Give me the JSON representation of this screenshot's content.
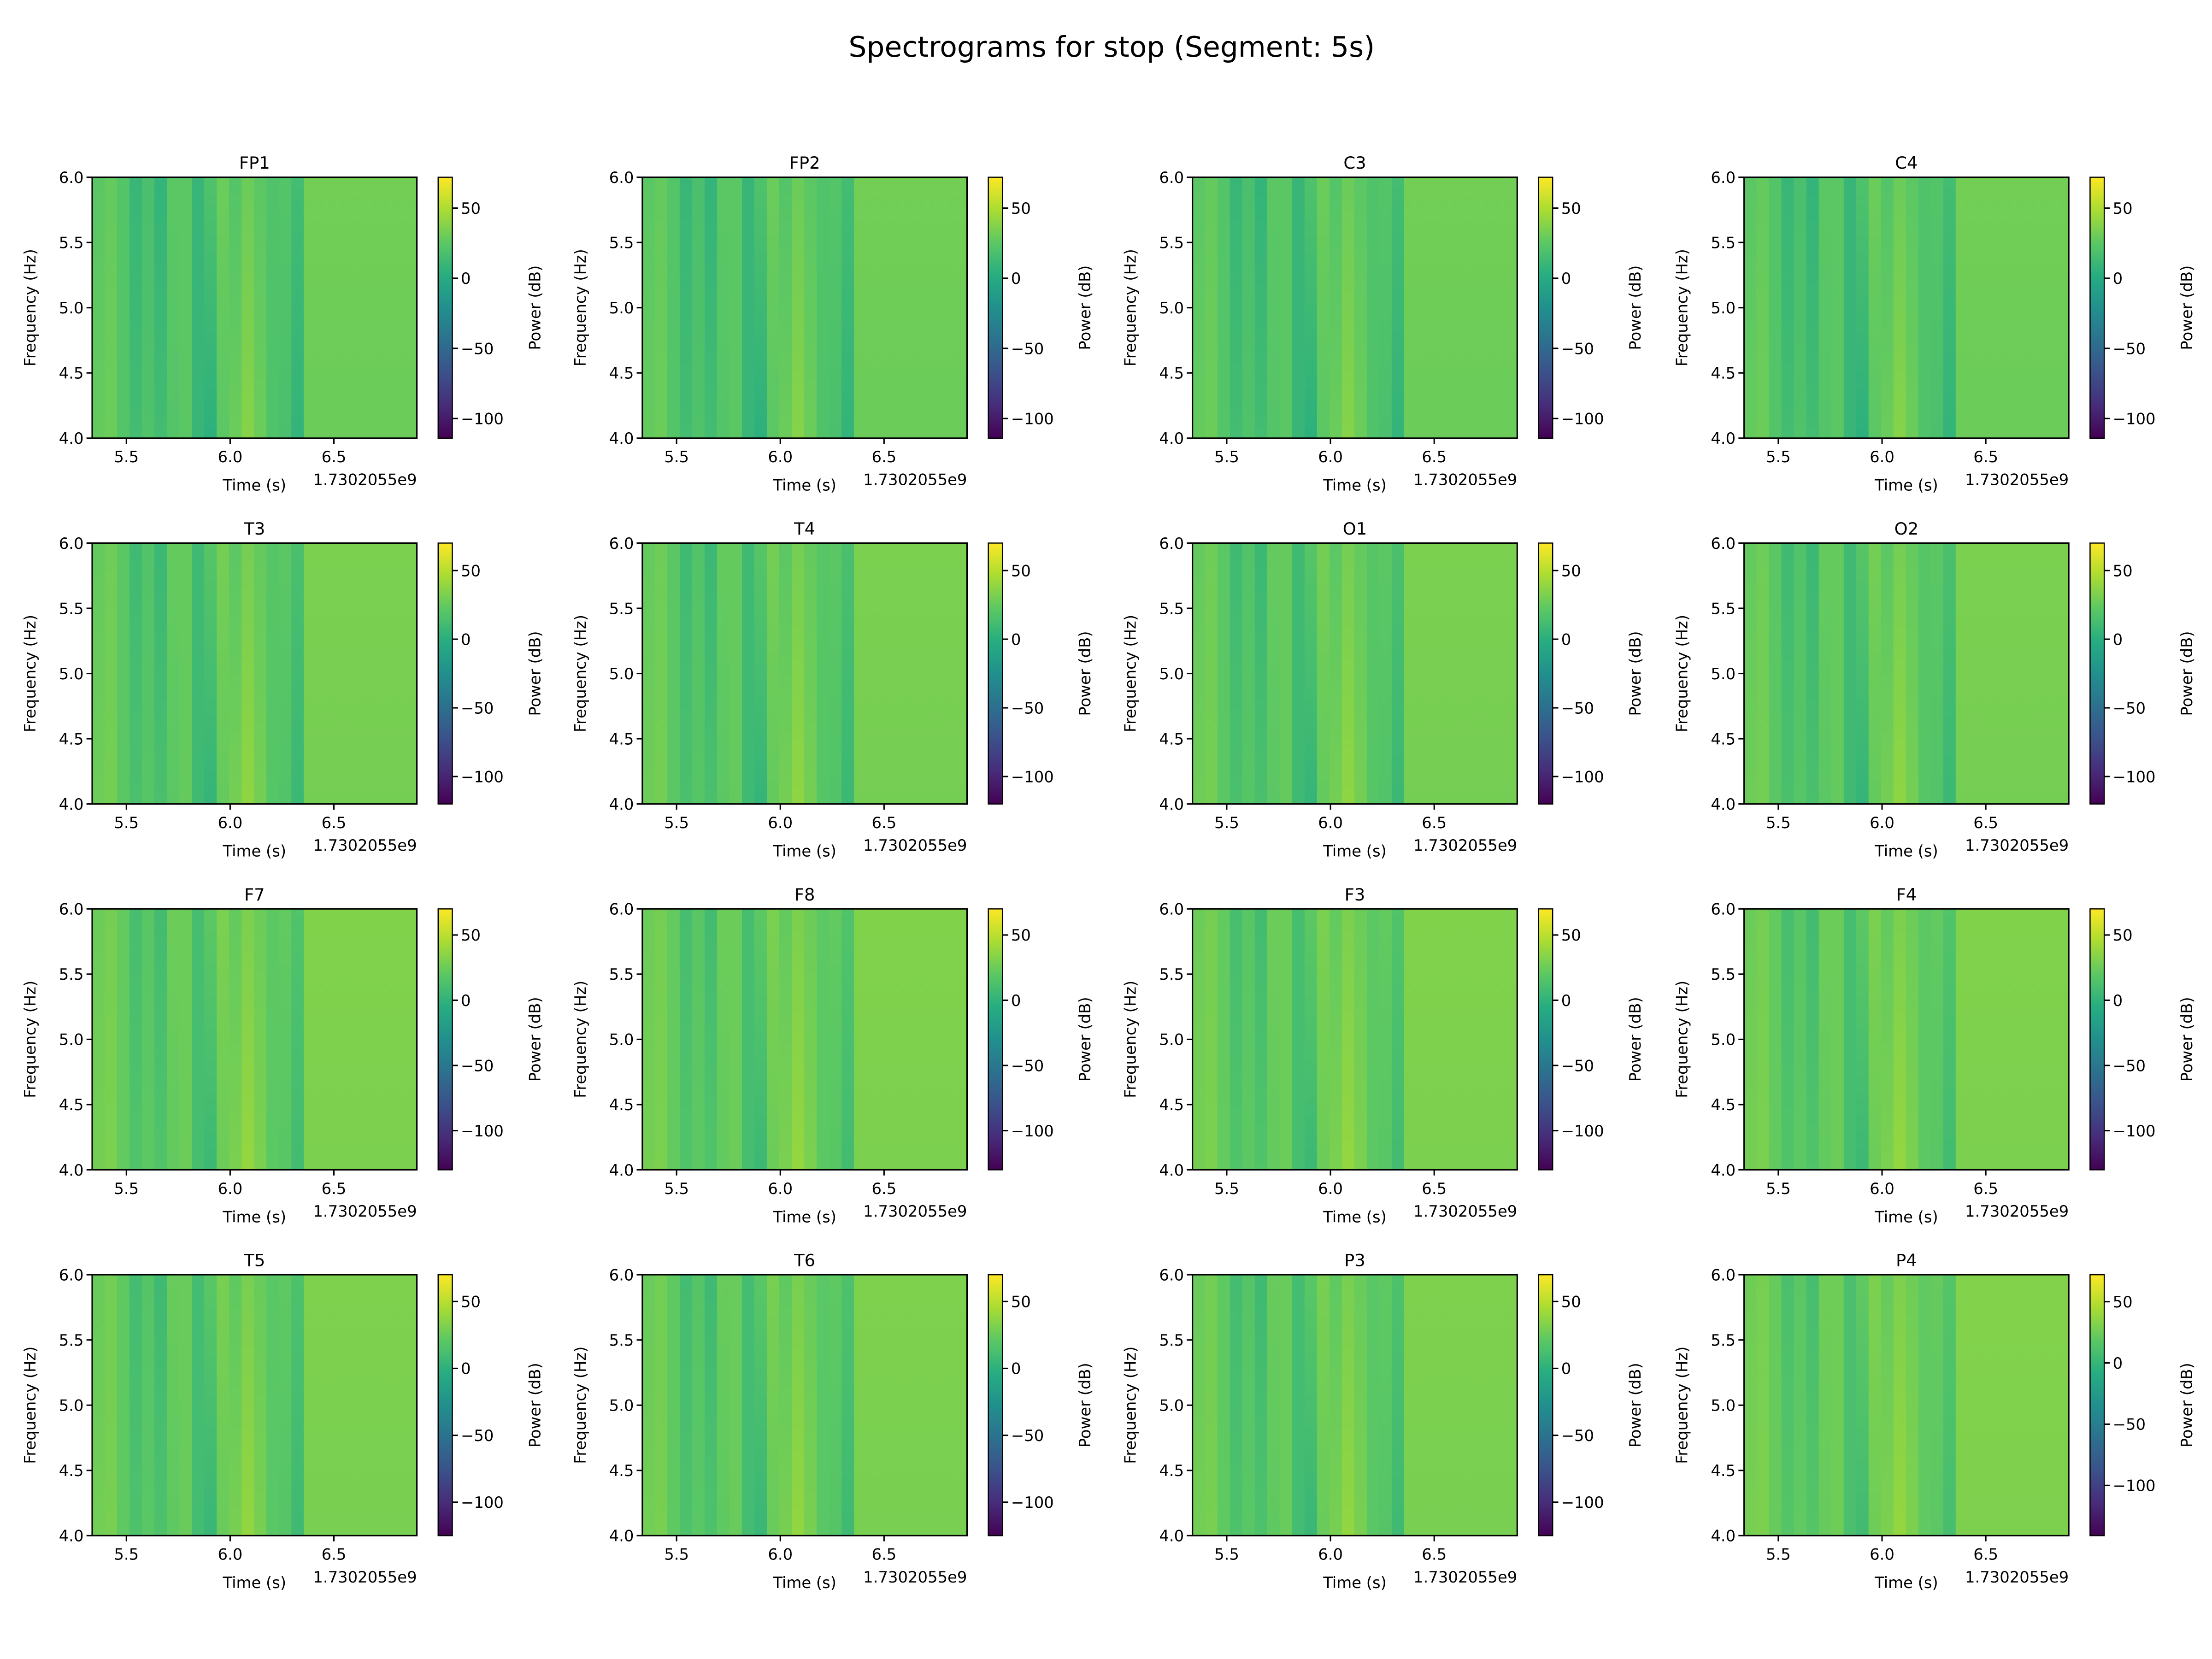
{
  "chart_data": {
    "type": "heatmap",
    "title": "Spectrograms for stop (Segment: 5s)",
    "xlabel": "Time (s)",
    "x_offset_text": "1.7302055e9",
    "ylabel": "Frequency (Hz)",
    "colorbar_label": "Power (dB)",
    "colormap": "viridis",
    "xlim": [
      5.335,
      6.9
    ],
    "ylim": [
      4.0,
      6.0
    ],
    "xticks": [
      "5.5",
      "6.0",
      "6.5"
    ],
    "yticks": [
      "4.0",
      "4.5",
      "5.0",
      "5.5",
      "6.0"
    ],
    "colorbar_ticks": [
      "50",
      "0",
      "−50",
      "−100"
    ],
    "time_bin_edges": [
      5.335,
      5.395,
      5.455,
      5.515,
      5.575,
      5.635,
      5.695,
      5.755,
      5.815,
      5.875,
      5.935,
      5.995,
      6.055,
      6.115,
      6.175,
      6.235,
      6.295,
      6.355,
      6.9
    ],
    "power_db_low_freq": [
      28,
      30,
      22,
      15,
      20,
      15,
      22,
      25,
      10,
      5,
      25,
      30,
      38,
      30,
      20,
      18,
      8,
      30
    ],
    "power_db_high_freq": [
      25,
      28,
      22,
      10,
      18,
      8,
      25,
      25,
      10,
      20,
      30,
      22,
      30,
      25,
      20,
      22,
      15,
      32
    ],
    "panels": [
      {
        "channel": "FP1",
        "vmin": -114,
        "vmax": 72
      },
      {
        "channel": "FP2",
        "vmin": -114,
        "vmax": 72
      },
      {
        "channel": "C3",
        "vmin": -114,
        "vmax": 72
      },
      {
        "channel": "C4",
        "vmin": -114,
        "vmax": 72
      },
      {
        "channel": "T3",
        "vmin": -120,
        "vmax": 70
      },
      {
        "channel": "T4",
        "vmin": -120,
        "vmax": 70
      },
      {
        "channel": "O1",
        "vmin": -120,
        "vmax": 70
      },
      {
        "channel": "O2",
        "vmin": -120,
        "vmax": 70
      },
      {
        "channel": "F7",
        "vmin": -130,
        "vmax": 70
      },
      {
        "channel": "F8",
        "vmin": -130,
        "vmax": 70
      },
      {
        "channel": "F3",
        "vmin": -130,
        "vmax": 70
      },
      {
        "channel": "F4",
        "vmin": -130,
        "vmax": 70
      },
      {
        "channel": "T5",
        "vmin": -125,
        "vmax": 70
      },
      {
        "channel": "T6",
        "vmin": -125,
        "vmax": 70
      },
      {
        "channel": "P3",
        "vmin": -125,
        "vmax": 70
      },
      {
        "channel": "P4",
        "vmin": -141,
        "vmax": 72
      }
    ]
  }
}
